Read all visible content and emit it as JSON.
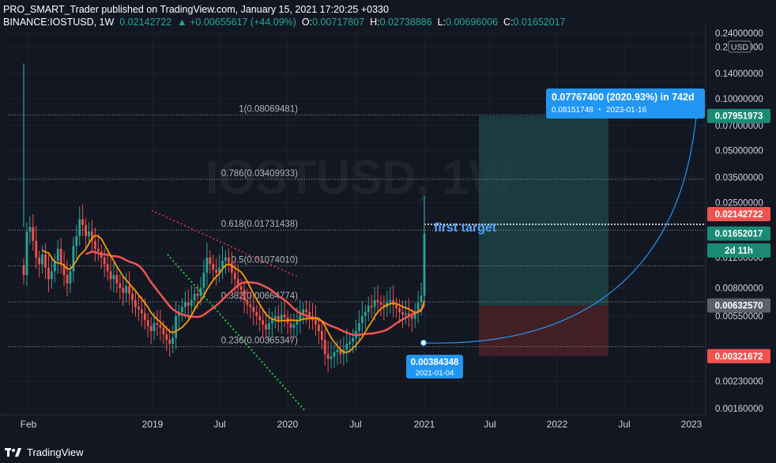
{
  "header": {
    "publish_line": "PRO_SMART_Trader published on TradingView.com, January 15, 2021 17:20:25 +0330",
    "symbol": "BINANCE:IOSTUSD, 1W",
    "last": "0.02142722",
    "change": "+0.00655617 (+44.09%)",
    "o_label": "O:",
    "o_value": "0.00717807",
    "h_label": "H:",
    "h_value": "0.02738886",
    "l_label": "L:",
    "l_value": "0.00696006",
    "c_label": "C:",
    "c_value": "0.01652017"
  },
  "footer": {
    "brand": "TradingView"
  },
  "colors": {
    "background": "#131722",
    "up": "#26a69a",
    "down": "#ef5350",
    "ma_fast": "#ff9800",
    "ma_slow": "#f05454",
    "accent": "#2196f3",
    "target_fill": "#1e4a4a",
    "stop_fill": "#4a2125"
  },
  "chart_data": {
    "type": "candlestick",
    "symbol": "IOSTUSD",
    "scale": "log",
    "ylim": [
      0.00155,
      0.24
    ],
    "x_ticks": [
      "Feb",
      "2019",
      "Jul",
      "2020",
      "Jul",
      "2021",
      "Jul",
      "2022",
      "Jul",
      "2023"
    ],
    "y_ticks": [
      "0.24000000",
      "0.20000000",
      "0.14000000",
      "0.10000000",
      "0.07000000",
      "0.05000000",
      "0.03500000",
      "0.02500000",
      "0.01200000",
      "0.00800000",
      "0.00550000",
      "0.00230000",
      "0.00160000"
    ],
    "axis_unit": "USD",
    "price_tags": [
      {
        "label": "0.07951973",
        "value": 0.07951973,
        "color": "#1a8a74"
      },
      {
        "label": "0.02142722",
        "value": 0.02142722,
        "color": "#ef5350"
      },
      {
        "label": "0.01652017",
        "value": 0.01652017,
        "color": "#1a8a74"
      },
      {
        "label": "2d 11h",
        "value": 0.0132,
        "color": "#1a8a74"
      },
      {
        "label": "0.00632570",
        "value": 0.0063257,
        "color": "#5d606b"
      },
      {
        "label": "0.00321672",
        "value": 0.00321672,
        "color": "#ef5350"
      }
    ],
    "fibonacci": [
      {
        "label": "1(0.08069481)",
        "value": 0.08069481
      },
      {
        "label": "0.786(0.03409933)",
        "value": 0.03409933
      },
      {
        "label": "0.618(0.01731438)",
        "value": 0.01731438
      },
      {
        "label": "0.5(0.01074010)",
        "value": 0.0107401
      },
      {
        "label": "0.382(0.00664774)",
        "value": 0.00664774
      },
      {
        "label": "0.236(0.00365347)",
        "value": 0.00365347
      }
    ],
    "annotations": {
      "first_target": "first target",
      "measure_main": "0.07767400 (2020.93%) in 742d",
      "measure_sub": "0.08151748",
      "measure_date": "2023-01-16",
      "anchor_price": "0.00384348",
      "anchor_date": "2021-01-04",
      "watermark": "IOSTUSD, 1W"
    },
    "position": {
      "entry": 0.0063257,
      "target": 0.07951973,
      "stop": 0.00321672
    },
    "candles_close": [
      0.0095,
      0.017,
      0.018,
      0.015,
      0.012,
      0.011,
      0.0125,
      0.0105,
      0.009,
      0.01,
      0.0115,
      0.0135,
      0.011,
      0.0095,
      0.0085,
      0.01,
      0.014,
      0.016,
      0.02,
      0.0185,
      0.016,
      0.017,
      0.015,
      0.0135,
      0.013,
      0.012,
      0.011,
      0.01,
      0.009,
      0.0095,
      0.0085,
      0.008,
      0.0075,
      0.0082,
      0.0074,
      0.0068,
      0.0062,
      0.006,
      0.0057,
      0.0052,
      0.0048,
      0.0045,
      0.005,
      0.0049,
      0.0047,
      0.0043,
      0.004,
      0.0038,
      0.0041,
      0.0055,
      0.0058,
      0.0062,
      0.0066,
      0.0063,
      0.0068,
      0.0074,
      0.0072,
      0.008,
      0.0098,
      0.012,
      0.011,
      0.0102,
      0.0098,
      0.0105,
      0.0115,
      0.012,
      0.0112,
      0.0098,
      0.009,
      0.0082,
      0.0078,
      0.0068,
      0.0064,
      0.0062,
      0.0058,
      0.0055,
      0.0052,
      0.0049,
      0.0046,
      0.005,
      0.0053,
      0.0055,
      0.0052,
      0.0056,
      0.0054,
      0.005,
      0.0047,
      0.0049,
      0.0052,
      0.0056,
      0.006,
      0.0058,
      0.0055,
      0.0052,
      0.0049,
      0.0045,
      0.004,
      0.0033,
      0.0031,
      0.0032,
      0.0034,
      0.0035,
      0.0033,
      0.0035,
      0.0038,
      0.0039,
      0.0041,
      0.0045,
      0.005,
      0.0055,
      0.0058,
      0.0063,
      0.0062,
      0.0068,
      0.0066,
      0.0064,
      0.0062,
      0.0066,
      0.0068,
      0.0064,
      0.0061,
      0.0058,
      0.0056,
      0.0057,
      0.0055,
      0.0053,
      0.0058,
      0.0066,
      0.0072,
      0.0165
    ]
  }
}
